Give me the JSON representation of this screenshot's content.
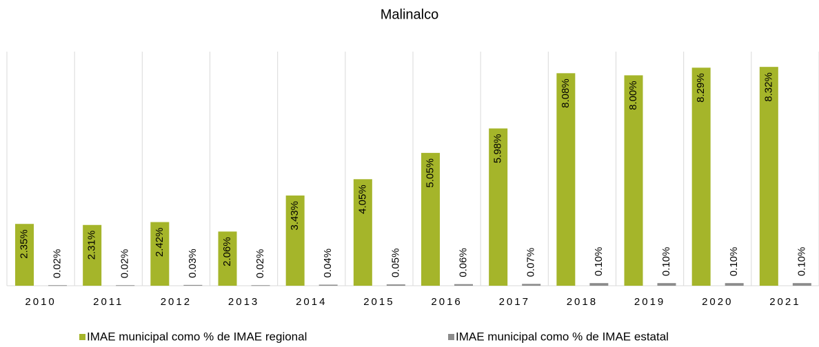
{
  "chart_data": {
    "type": "bar",
    "title": "Malinalco",
    "categories": [
      "2010",
      "2011",
      "2012",
      "2013",
      "2014",
      "2015",
      "2016",
      "2017",
      "2018",
      "2019",
      "2020",
      "2021"
    ],
    "series": [
      {
        "name": "IMAE municipal como % de IMAE regional",
        "color": "#a5b52a",
        "values": [
          2.35,
          2.31,
          2.42,
          2.06,
          3.43,
          4.05,
          5.05,
          5.98,
          8.08,
          8.0,
          8.29,
          8.32
        ],
        "value_labels": [
          "2.35%",
          "2.31%",
          "2.42%",
          "2.06%",
          "3.43%",
          "4.05%",
          "5.05%",
          "5.98%",
          "8.08%",
          "8.00%",
          "8.29%",
          "8.32%"
        ]
      },
      {
        "name": "IMAE municipal como % de IMAE estatal",
        "color": "#8c8c8c",
        "values": [
          0.02,
          0.02,
          0.03,
          0.02,
          0.04,
          0.05,
          0.06,
          0.07,
          0.1,
          0.1,
          0.1,
          0.1
        ],
        "value_labels": [
          "0.02%",
          "0.02%",
          "0.03%",
          "0.02%",
          "0.04%",
          "0.05%",
          "0.06%",
          "0.07%",
          "0.10%",
          "0.10%",
          "0.10%",
          "0.10%"
        ]
      }
    ],
    "ylim": [
      0,
      8.9
    ],
    "legend": "bottom"
  }
}
